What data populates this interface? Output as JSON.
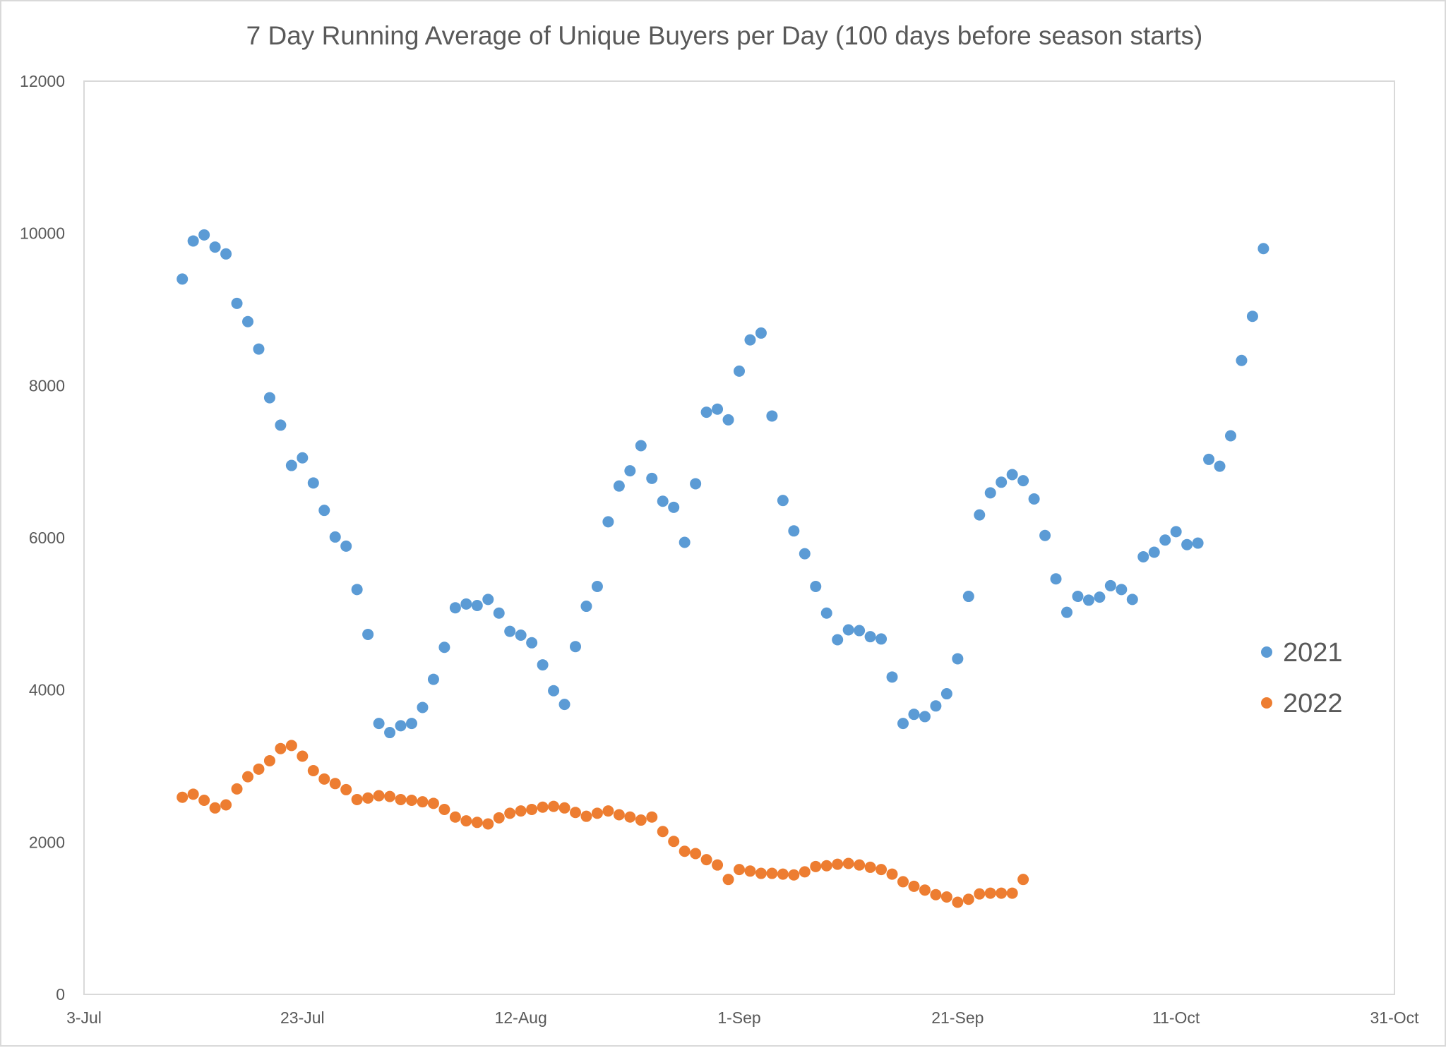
{
  "chart_data": {
    "type": "scatter",
    "title": "7 Day Running Average of Unique Buyers per Day (100 days before season starts)",
    "xlabel": "",
    "ylabel": "",
    "x_axis": {
      "type": "date",
      "range": [
        "2021-07-03",
        "2021-10-31"
      ],
      "tick_dates": [
        "2021-07-03",
        "2021-07-23",
        "2021-08-12",
        "2021-09-01",
        "2021-09-21",
        "2021-10-11",
        "2021-10-31"
      ],
      "tick_labels": [
        "3-Jul",
        "23-Jul",
        "12-Aug",
        "1-Sep",
        "21-Sep",
        "11-Oct",
        "31-Oct"
      ]
    },
    "y_axis": {
      "range": [
        0,
        12000
      ],
      "ticks": [
        0,
        2000,
        4000,
        6000,
        8000,
        10000,
        12000
      ],
      "tick_labels": [
        "0",
        "2000",
        "4000",
        "6000",
        "8000",
        "10000",
        "12000"
      ]
    },
    "grid": false,
    "legend_position": "right",
    "series": [
      {
        "name": "2021",
        "color": "#5b9bd5",
        "x_start": "2021-07-12",
        "values": [
          9400,
          9900,
          9980,
          9820,
          9730,
          9080,
          8840,
          8480,
          7840,
          7480,
          6950,
          7050,
          6720,
          6360,
          6010,
          5890,
          5320,
          4730,
          3560,
          3440,
          3530,
          3560,
          3770,
          4140,
          4560,
          5080,
          5130,
          5110,
          5190,
          5010,
          4770,
          4720,
          4620,
          4330,
          3990,
          3810,
          4570,
          5100,
          5360,
          6210,
          6680,
          6880,
          7210,
          6780,
          6480,
          6400,
          5940,
          6710,
          7650,
          7690,
          7550,
          8190,
          8600,
          8690,
          7600,
          6490,
          6090,
          5790,
          5360,
          5010,
          4660,
          4790,
          4780,
          4700,
          4670,
          4170,
          3560,
          3680,
          3650,
          3790,
          3950,
          4410,
          5230,
          6300,
          6590,
          6730,
          6830,
          6750,
          6510,
          6030,
          5460,
          5020,
          5230,
          5180,
          5220,
          5370,
          5320,
          5190,
          5750,
          5810,
          5970,
          6080,
          5910,
          5930,
          7030,
          6940,
          7340,
          8330,
          8910,
          9800
        ]
      },
      {
        "name": "2022",
        "color": "#ed7d31",
        "x_start": "2021-07-12",
        "values": [
          2590,
          2630,
          2550,
          2450,
          2490,
          2700,
          2860,
          2960,
          3070,
          3230,
          3270,
          3130,
          2940,
          2830,
          2770,
          2690,
          2560,
          2580,
          2610,
          2600,
          2560,
          2550,
          2530,
          2510,
          2430,
          2330,
          2280,
          2260,
          2240,
          2320,
          2380,
          2410,
          2430,
          2460,
          2470,
          2450,
          2390,
          2340,
          2380,
          2410,
          2360,
          2330,
          2290,
          2330,
          2140,
          2010,
          1880,
          1850,
          1770,
          1700,
          1510,
          1640,
          1620,
          1590,
          1590,
          1580,
          1570,
          1610,
          1680,
          1690,
          1710,
          1720,
          1700,
          1670,
          1640,
          1580,
          1480,
          1420,
          1370,
          1310,
          1280,
          1210,
          1250,
          1320,
          1330,
          1330,
          1330,
          1510
        ]
      }
    ]
  }
}
